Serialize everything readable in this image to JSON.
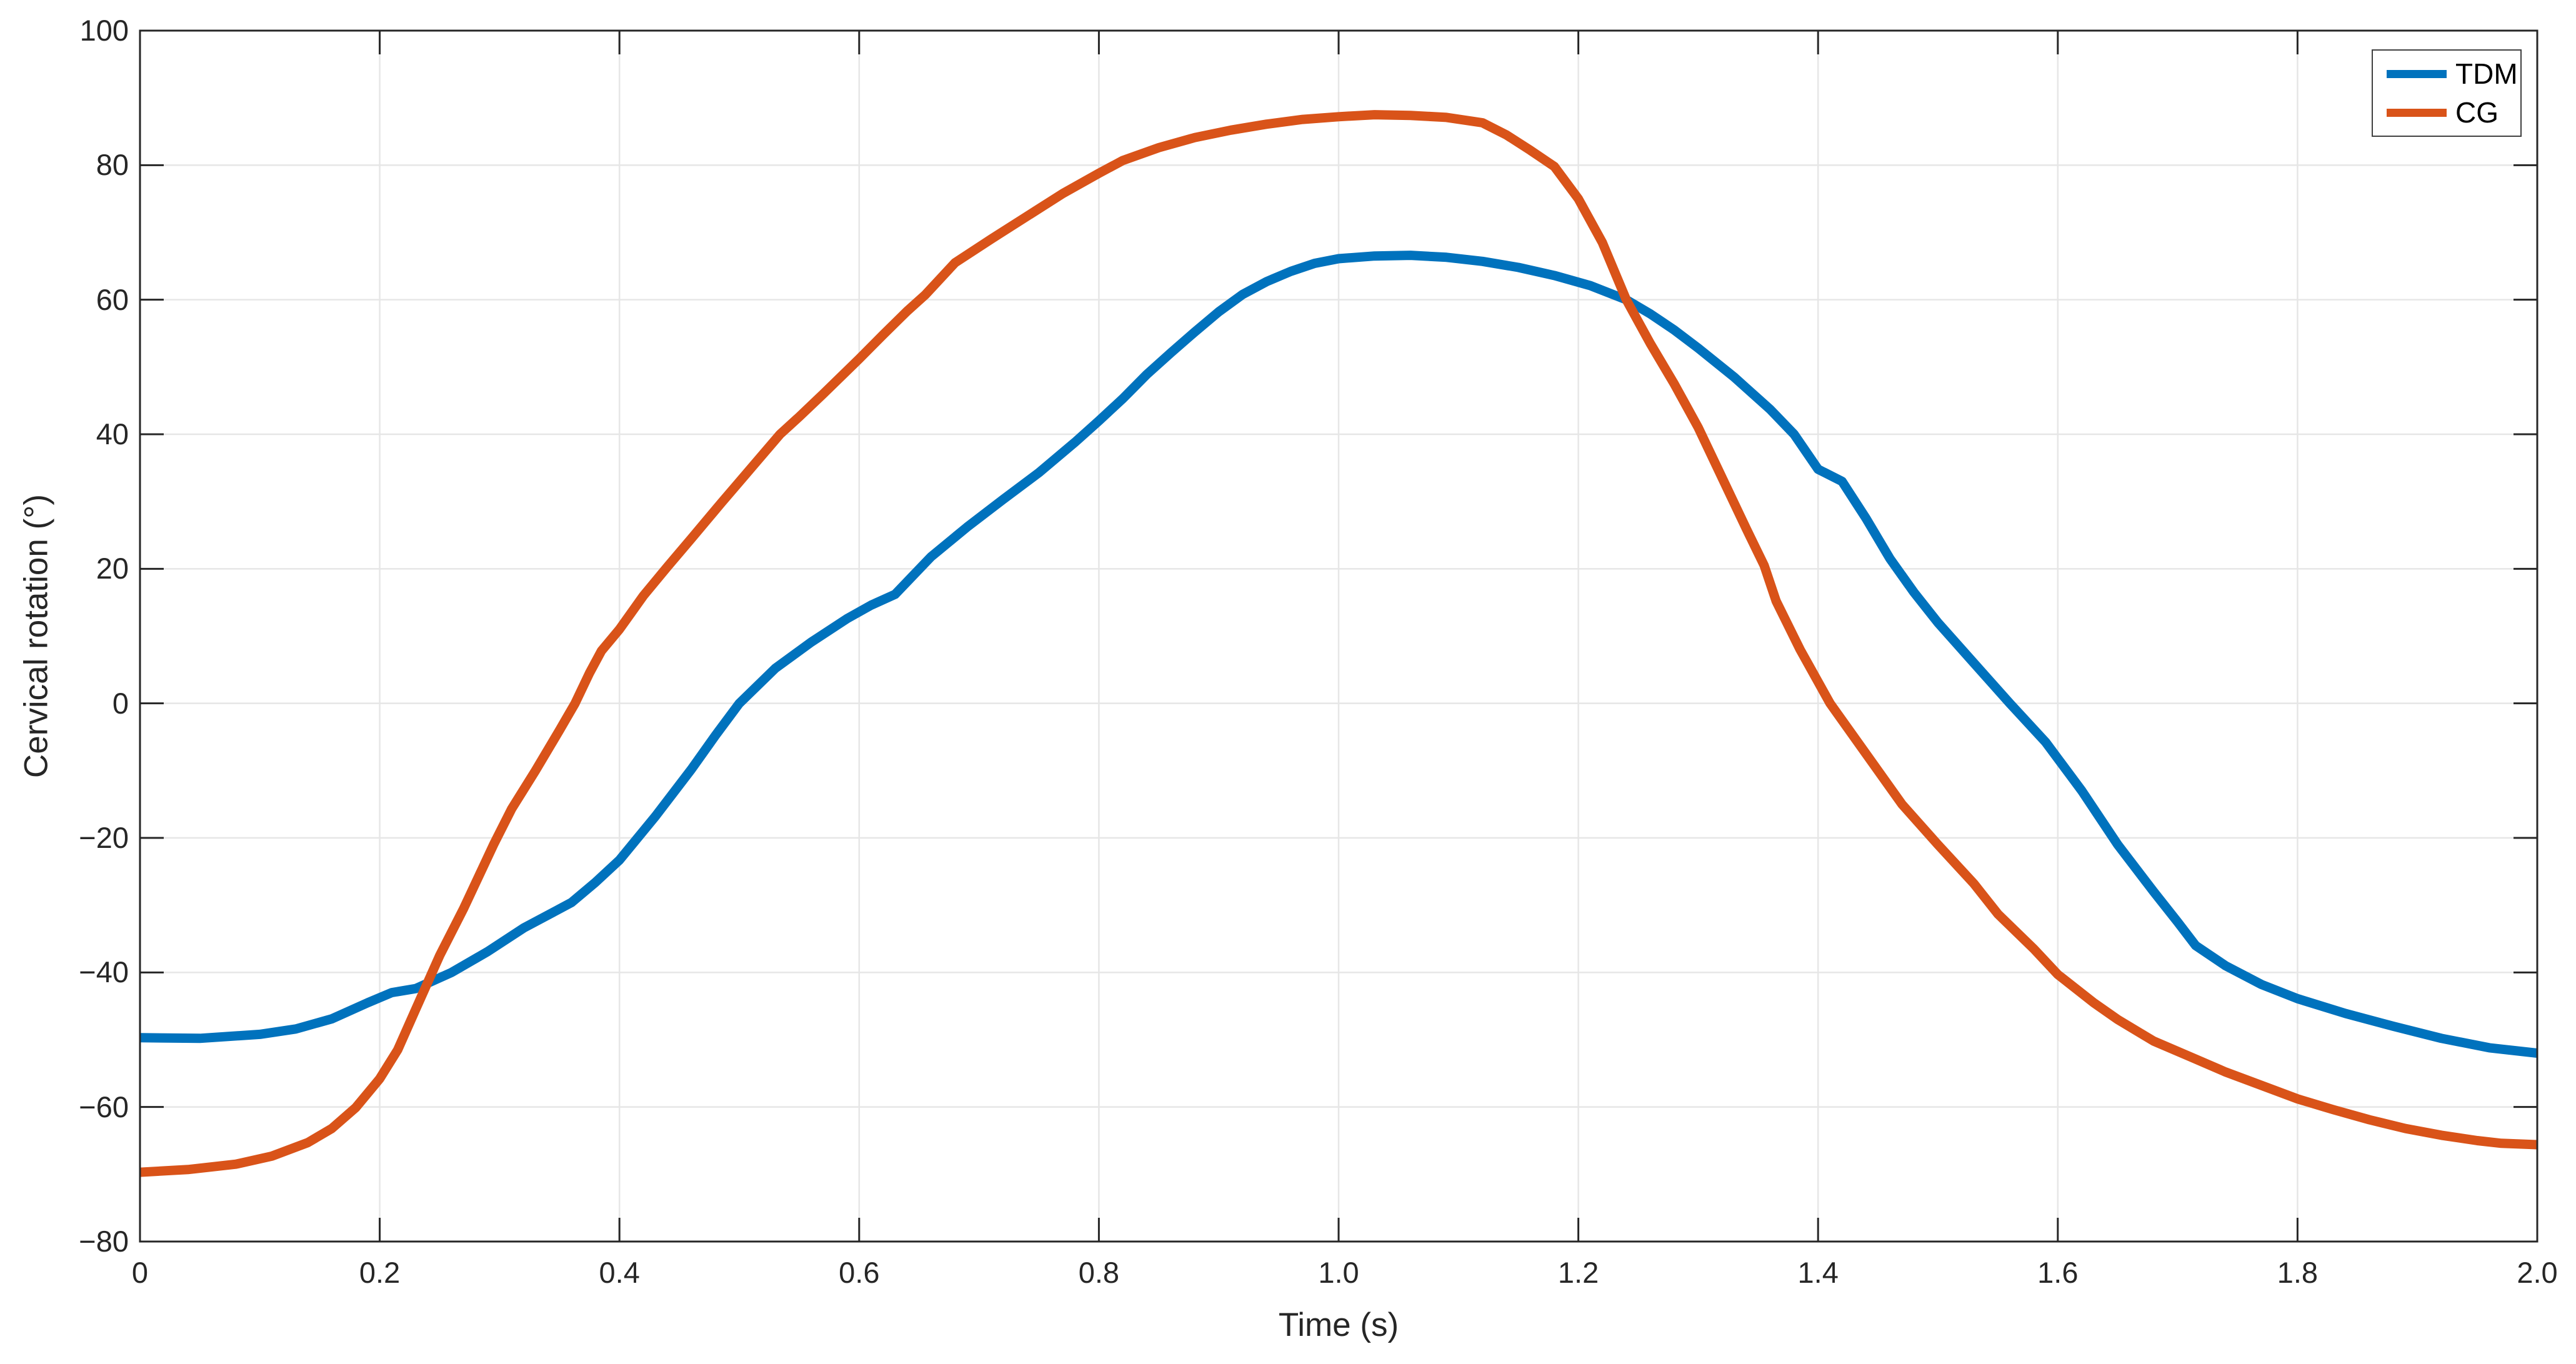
{
  "figure": {
    "background": "#ffffff",
    "plot_area_border_color": "#262626",
    "grid_color": "#e6e6e6"
  },
  "chart_data": {
    "type": "line",
    "title": "",
    "xlabel": "Time (s)",
    "ylabel": "Cervical rotation (°)",
    "xlim": [
      0,
      2
    ],
    "ylim": [
      -80,
      100
    ],
    "grid": true,
    "legend_position": "top-right",
    "xticks": [
      0,
      0.2,
      0.4,
      0.6,
      0.8,
      1.0,
      1.2,
      1.4,
      1.6,
      1.8,
      2.0
    ],
    "xtick_labels": [
      "0",
      "0.2",
      "0.4",
      "0.6",
      "0.8",
      "1.0",
      "1.2",
      "1.4",
      "1.6",
      "1.8",
      "2.0"
    ],
    "yticks": [
      -80,
      -60,
      -40,
      -20,
      0,
      20,
      40,
      60,
      80,
      100
    ],
    "ytick_labels": [
      "−80",
      "−60",
      "−40",
      "−20",
      "0",
      "20",
      "40",
      "60",
      "80",
      "100"
    ],
    "line_width": 15,
    "series": [
      {
        "name": "TDM",
        "color": "#0072BD",
        "x": [
          0,
          0.05,
          0.1,
          0.13,
          0.16,
          0.19,
          0.21,
          0.23,
          0.26,
          0.29,
          0.32,
          0.36,
          0.38,
          0.4,
          0.43,
          0.46,
          0.48,
          0.5,
          0.53,
          0.56,
          0.59,
          0.61,
          0.63,
          0.645,
          0.66,
          0.69,
          0.72,
          0.75,
          0.78,
          0.8,
          0.82,
          0.84,
          0.86,
          0.88,
          0.9,
          0.92,
          0.94,
          0.96,
          0.98,
          1.0,
          1.03,
          1.06,
          1.09,
          1.12,
          1.15,
          1.18,
          1.21,
          1.24,
          1.26,
          1.28,
          1.3,
          1.33,
          1.36,
          1.38,
          1.4,
          1.42,
          1.44,
          1.46,
          1.48,
          1.5,
          1.53,
          1.56,
          1.59,
          1.62,
          1.65,
          1.68,
          1.7,
          1.715,
          1.74,
          1.77,
          1.8,
          1.84,
          1.88,
          1.92,
          1.96,
          2.0
        ],
        "y": [
          -49.7,
          -49.8,
          -49.2,
          -48.4,
          -46.9,
          -44.5,
          -43.0,
          -42.4,
          -40.0,
          -36.9,
          -33.4,
          -29.6,
          -26.6,
          -23.3,
          -16.8,
          -9.8,
          -4.8,
          0.0,
          5.2,
          9.1,
          12.6,
          14.6,
          16.2,
          19.0,
          21.8,
          26.2,
          30.3,
          34.3,
          38.8,
          42.0,
          45.3,
          48.9,
          52.1,
          55.2,
          58.2,
          60.8,
          62.7,
          64.2,
          65.4,
          66.1,
          66.5,
          66.6,
          66.3,
          65.7,
          64.8,
          63.6,
          62.1,
          60.0,
          57.9,
          55.5,
          52.8,
          48.5,
          43.7,
          40.0,
          34.8,
          33.0,
          27.5,
          21.5,
          16.5,
          12.0,
          6.0,
          0.0,
          -5.8,
          -13.0,
          -21.0,
          -28.0,
          -32.5,
          -36.0,
          -39.0,
          -41.8,
          -43.9,
          -46.1,
          -48.0,
          -49.8,
          -51.2,
          -52.0
        ]
      },
      {
        "name": "CG",
        "color": "#D95319",
        "x": [
          0,
          0.04,
          0.08,
          0.11,
          0.14,
          0.16,
          0.18,
          0.2,
          0.215,
          0.23,
          0.25,
          0.27,
          0.295,
          0.31,
          0.33,
          0.35,
          0.363,
          0.375,
          0.385,
          0.4,
          0.42,
          0.44,
          0.46,
          0.485,
          0.51,
          0.534,
          0.55,
          0.57,
          0.6,
          0.62,
          0.64,
          0.655,
          0.68,
          0.71,
          0.74,
          0.77,
          0.8,
          0.82,
          0.85,
          0.88,
          0.91,
          0.94,
          0.97,
          1.0,
          1.03,
          1.06,
          1.09,
          1.12,
          1.14,
          1.16,
          1.18,
          1.2,
          1.22,
          1.24,
          1.26,
          1.28,
          1.3,
          1.32,
          1.34,
          1.355,
          1.365,
          1.385,
          1.41,
          1.44,
          1.47,
          1.5,
          1.53,
          1.55,
          1.58,
          1.6,
          1.63,
          1.65,
          1.68,
          1.71,
          1.74,
          1.77,
          1.8,
          1.83,
          1.86,
          1.89,
          1.92,
          1.95,
          1.97,
          2.0
        ],
        "y": [
          -69.7,
          -69.3,
          -68.5,
          -67.3,
          -65.3,
          -63.2,
          -60.1,
          -55.8,
          -51.5,
          -45.5,
          -37.5,
          -30.5,
          -21.0,
          -15.7,
          -10.0,
          -4.0,
          0.0,
          4.5,
          7.8,
          11.0,
          16.0,
          20.3,
          24.5,
          29.8,
          35.0,
          40.0,
          42.6,
          46.0,
          51.2,
          54.8,
          58.3,
          60.7,
          65.5,
          69.0,
          72.4,
          75.8,
          78.8,
          80.7,
          82.6,
          84.1,
          85.2,
          86.1,
          86.8,
          87.2,
          87.5,
          87.4,
          87.1,
          86.3,
          84.5,
          82.2,
          79.8,
          75.0,
          68.5,
          60.0,
          53.5,
          47.5,
          41.0,
          33.5,
          26.0,
          20.5,
          15.2,
          8.0,
          0.0,
          -7.5,
          -15.0,
          -21.0,
          -26.8,
          -31.3,
          -36.5,
          -40.3,
          -44.5,
          -47.0,
          -50.2,
          -52.5,
          -54.8,
          -56.8,
          -58.8,
          -60.4,
          -61.9,
          -63.2,
          -64.2,
          -65.0,
          -65.4,
          -65.6
        ]
      }
    ]
  }
}
